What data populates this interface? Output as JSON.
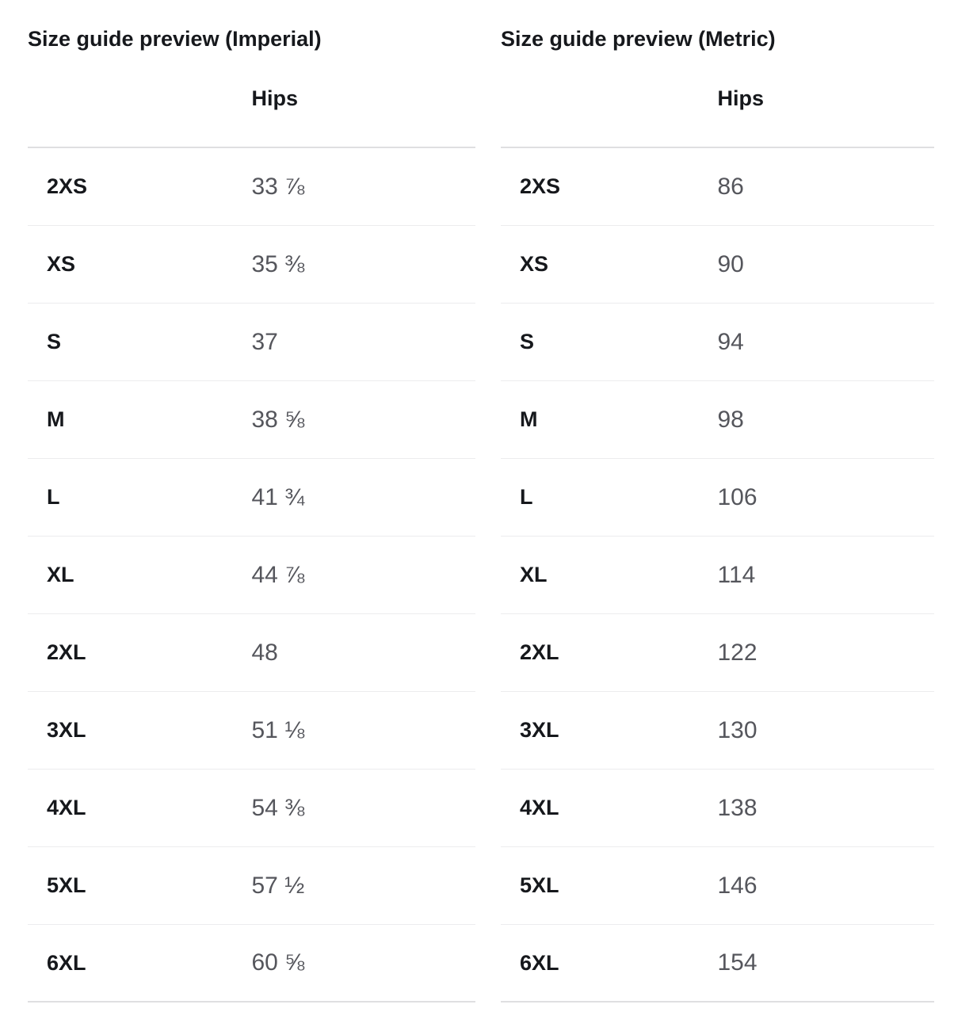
{
  "colors": {
    "background": "#ffffff",
    "text_primary": "#16181c",
    "text_secondary": "#55565c",
    "divider_strong": "#dfdfe1",
    "divider_light": "#ececee"
  },
  "tables": [
    {
      "id": "imperial",
      "title": "Size guide preview (Imperial)",
      "column_header": "Hips",
      "rows": [
        {
          "size": "2XS",
          "hips": "33 ⅞"
        },
        {
          "size": "XS",
          "hips": "35 ⅜"
        },
        {
          "size": "S",
          "hips": "37"
        },
        {
          "size": "M",
          "hips": "38 ⅝"
        },
        {
          "size": "L",
          "hips": "41 ¾"
        },
        {
          "size": "XL",
          "hips": "44 ⅞"
        },
        {
          "size": "2XL",
          "hips": "48"
        },
        {
          "size": "3XL",
          "hips": "51 ⅛"
        },
        {
          "size": "4XL",
          "hips": "54 ⅜"
        },
        {
          "size": "5XL",
          "hips": "57 ½"
        },
        {
          "size": "6XL",
          "hips": "60 ⅝"
        }
      ]
    },
    {
      "id": "metric",
      "title": "Size guide preview (Metric)",
      "column_header": "Hips",
      "rows": [
        {
          "size": "2XS",
          "hips": "86"
        },
        {
          "size": "XS",
          "hips": "90"
        },
        {
          "size": "S",
          "hips": "94"
        },
        {
          "size": "M",
          "hips": "98"
        },
        {
          "size": "L",
          "hips": "106"
        },
        {
          "size": "XL",
          "hips": "114"
        },
        {
          "size": "2XL",
          "hips": "122"
        },
        {
          "size": "3XL",
          "hips": "130"
        },
        {
          "size": "4XL",
          "hips": "138"
        },
        {
          "size": "5XL",
          "hips": "146"
        },
        {
          "size": "6XL",
          "hips": "154"
        }
      ]
    }
  ]
}
